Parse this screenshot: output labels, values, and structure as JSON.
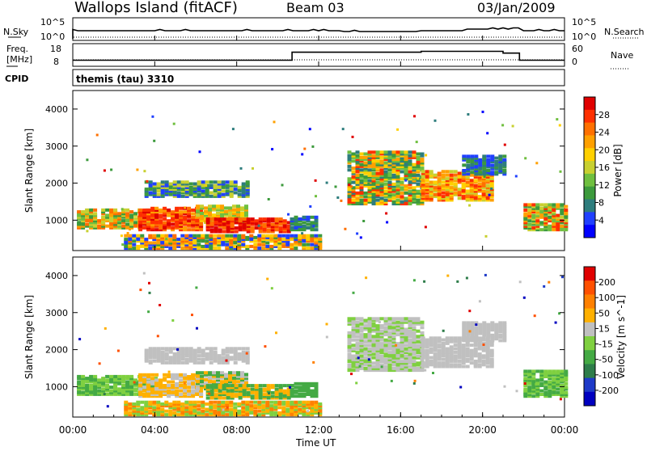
{
  "header": {
    "title": "Wallops Island (fitACF)",
    "beam": "Beam 03",
    "date": "03/Jan/2009"
  },
  "top_panels": {
    "nsky_label": "N.Sky",
    "nsky_ticks": [
      "10^5",
      "10^0"
    ],
    "nsearch_label": "N.Search",
    "nsearch_ticks": [
      "10^5",
      "10^0"
    ],
    "freq_label_1": "Freq.",
    "freq_label_2": "[MHz]",
    "freq_ticks": [
      "18",
      "8"
    ],
    "nave_label": "Nave",
    "nave_ticks": [
      "60",
      "0"
    ],
    "cpid_label": "CPID",
    "cpid_text": "themis (tau) 3310"
  },
  "colors": {
    "power_scale": [
      "#0000ff",
      "#2040ff",
      "#2e7d7d",
      "#3c9a3c",
      "#6fbf3f",
      "#c8d030",
      "#ffd000",
      "#ffa000",
      "#ff7000",
      "#ff3000",
      "#e00000"
    ],
    "velocity_scale": [
      "#0000c0",
      "#1e3ac8",
      "#2e7d4a",
      "#44aa44",
      "#7fd040",
      "#c0c0c0",
      "#ffb000",
      "#ff8000",
      "#ff5000",
      "#e00000"
    ]
  },
  "chart_data": [
    {
      "type": "line",
      "name": "N.Sky / N.Search",
      "x": [
        0,
        24
      ],
      "xlim": [
        0,
        24
      ],
      "ylabel": "N.Sky",
      "y2label": "N.Search",
      "yticks": [
        "10^5",
        "10^0"
      ]
    },
    {
      "type": "line",
      "name": "Frequency / Nave",
      "ylabel": "Freq. [MHz]",
      "yticks": [
        18,
        8
      ],
      "y2label": "Nave",
      "y2ticks": [
        60,
        0
      ],
      "series": [
        {
          "name": "Freq.",
          "x": [
            0,
            10.7,
            10.7,
            17,
            17,
            21,
            21,
            21.8,
            21.8,
            24
          ],
          "values": [
            10.5,
            10.5,
            15,
            15,
            15.5,
            15.5,
            14.5,
            14.5,
            10.5,
            10.5
          ]
        }
      ]
    },
    {
      "type": "heatmap",
      "ylabel": "Slant Range [km]",
      "yticks": [
        1000,
        2000,
        3000,
        4000
      ],
      "ylim": [
        180,
        4500
      ],
      "xlim": [
        0,
        24
      ],
      "colorbar_label": "Power [dB]",
      "colorbar_ticks": [
        4,
        8,
        12,
        16,
        20,
        24,
        28
      ]
    },
    {
      "type": "heatmap",
      "ylabel": "Slant Range [km]",
      "yticks": [
        1000,
        2000,
        3000,
        4000
      ],
      "ylim": [
        180,
        4500
      ],
      "xlim": [
        0,
        24
      ],
      "xticks": [
        "00:00",
        "04:00",
        "08:00",
        "12:00",
        "16:00",
        "20:00",
        "00:00"
      ],
      "xlabel": "Time UT",
      "colorbar_label": "Velocity [m s^-1]",
      "colorbar_ticks": [
        200,
        100,
        50,
        15,
        -15,
        -50,
        -100,
        -200
      ]
    }
  ]
}
